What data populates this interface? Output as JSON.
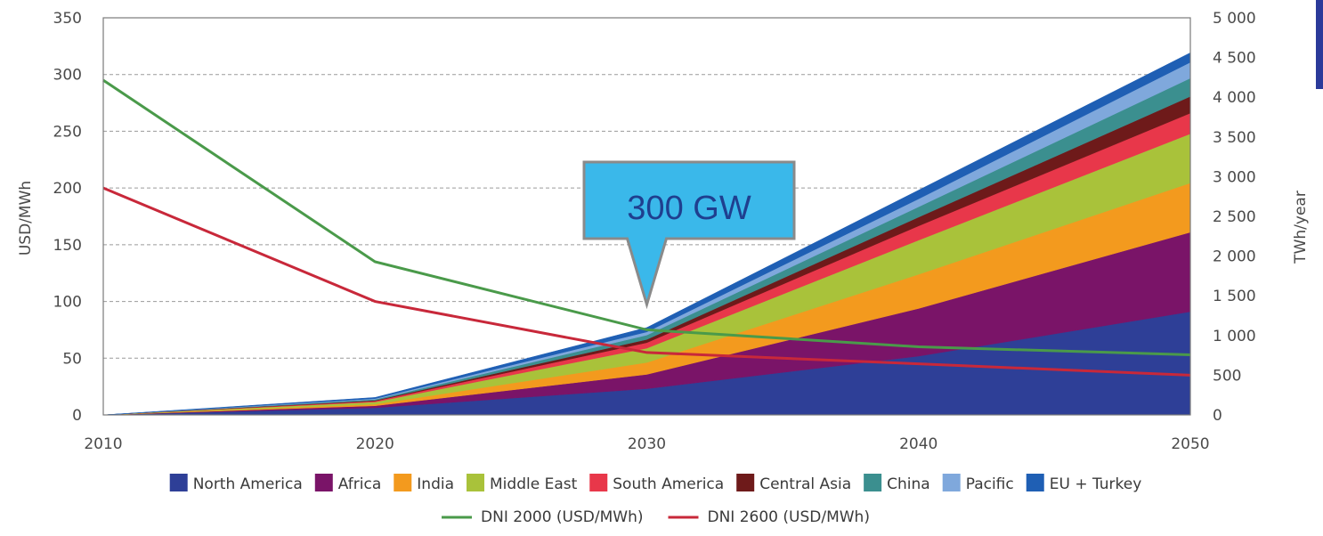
{
  "chart_data": {
    "type": "area",
    "x": [
      2010,
      2020,
      2030,
      2040,
      2050
    ],
    "xlim": [
      2010,
      2050
    ],
    "ylabel_left": "USD/MWh",
    "ylabel_right": "TWh/year",
    "ylim_left": [
      0,
      350
    ],
    "ylim_right": [
      0,
      5000
    ],
    "yticks_left": [
      0,
      50,
      100,
      150,
      200,
      250,
      300,
      350
    ],
    "yticks_right": [
      0,
      500,
      1000,
      1500,
      2000,
      2500,
      3000,
      3500,
      4000,
      4500,
      5000
    ],
    "ytick_labels_right": [
      "0",
      "500",
      "1 000",
      "1 500",
      "2 000",
      "2 500",
      "3 000",
      "3 500",
      "4 000",
      "4 500",
      "5 000"
    ],
    "grid": true,
    "legend_position": "bottom",
    "stacked_series_axis": "right",
    "series": [
      {
        "name": "North America",
        "color": "#2e3f97",
        "values": [
          0,
          90,
          330,
          740,
          1300
        ]
      },
      {
        "name": "Africa",
        "color": "#7a1468",
        "values": [
          0,
          25,
          180,
          600,
          1000
        ]
      },
      {
        "name": "India",
        "color": "#f39a1e",
        "values": [
          0,
          20,
          150,
          430,
          620
        ]
      },
      {
        "name": "Middle East",
        "color": "#a9c23a",
        "values": [
          0,
          28,
          180,
          430,
          620
        ]
      },
      {
        "name": "South America",
        "color": "#e8374a",
        "values": [
          0,
          12,
          70,
          180,
          260
        ]
      },
      {
        "name": "Central Asia",
        "color": "#6e1a1a",
        "values": [
          0,
          8,
          40,
          110,
          210
        ]
      },
      {
        "name": "China",
        "color": "#3b8f8f",
        "values": [
          0,
          12,
          55,
          130,
          230
        ]
      },
      {
        "name": "Pacific",
        "color": "#7fa8dc",
        "values": [
          0,
          10,
          40,
          100,
          200
        ]
      },
      {
        "name": "EU + Turkey",
        "color": "#1f5fb4",
        "values": [
          0,
          15,
          55,
          110,
          120
        ]
      }
    ],
    "lines": [
      {
        "name": "DNI 2000 (USD/MWh)",
        "axis": "left",
        "color": "#4a9a4a",
        "values": [
          295,
          135,
          75,
          60,
          53
        ]
      },
      {
        "name": "DNI 2600 (USD/MWh)",
        "axis": "left",
        "color": "#c8283a",
        "values": [
          200,
          100,
          55,
          45,
          35
        ]
      }
    ],
    "annotation": {
      "text": "300 GW",
      "x": 2030,
      "color": "#3ab8ea"
    }
  }
}
